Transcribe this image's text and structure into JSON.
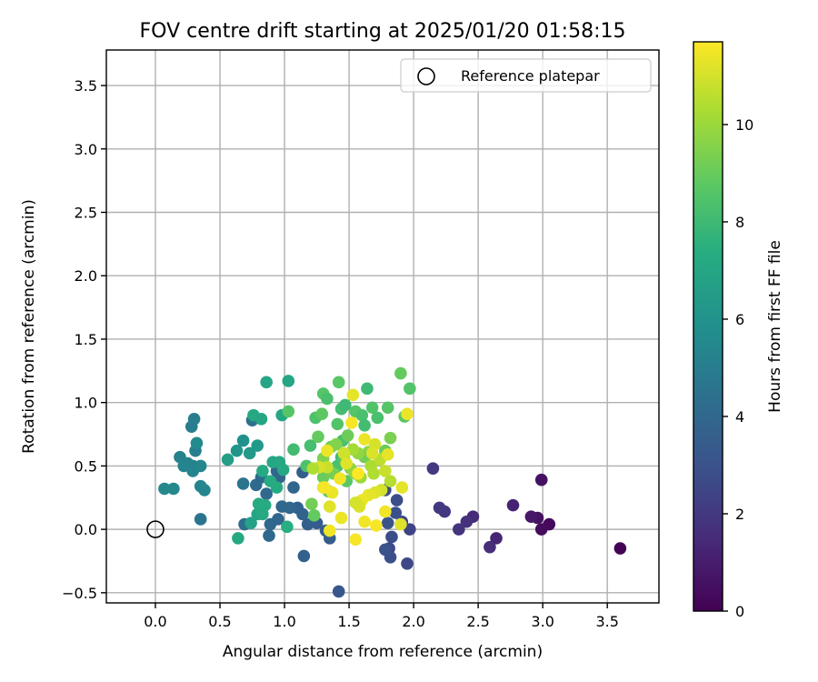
{
  "chart_data": {
    "type": "scatter",
    "title": "FOV centre drift starting at 2025/01/20 01:58:15",
    "xlabel": "Angular distance from reference (arcmin)",
    "ylabel": "Rotation from reference (arcmin)",
    "xlim": [
      -0.38,
      3.9
    ],
    "ylim": [
      -0.58,
      3.78
    ],
    "xticks": [
      0.0,
      0.5,
      1.0,
      1.5,
      2.0,
      2.5,
      3.0,
      3.5
    ],
    "xtick_labels": [
      "0.0",
      "0.5",
      "1.0",
      "1.5",
      "2.0",
      "2.5",
      "3.0",
      "3.5"
    ],
    "yticks": [
      -0.5,
      0.0,
      0.5,
      1.0,
      1.5,
      2.0,
      2.5,
      3.0,
      3.5
    ],
    "ytick_labels": [
      "−0.5",
      "0.0",
      "0.5",
      "1.0",
      "1.5",
      "2.0",
      "2.5",
      "3.0",
      "3.5"
    ],
    "grid": true,
    "legend": {
      "placement": "top-right",
      "entries": [
        {
          "label": "Reference platepar",
          "marker": "open-circle"
        }
      ]
    },
    "reference_point": {
      "x": 0.0,
      "y": 0.0
    },
    "colorbar": {
      "label": "Hours from first FF file",
      "colormap": "viridis",
      "range": [
        0,
        11.7
      ],
      "ticks": [
        0,
        2,
        4,
        6,
        8,
        10
      ],
      "tick_labels": [
        "0",
        "2",
        "4",
        "6",
        "8",
        "10"
      ]
    },
    "points": [
      {
        "x": 3.6,
        "y": -0.15,
        "c": 0.1
      },
      {
        "x": 3.05,
        "y": 0.04,
        "c": 0.3
      },
      {
        "x": 2.99,
        "y": 0.0,
        "c": 0.4
      },
      {
        "x": 2.99,
        "y": 0.39,
        "c": 0.6
      },
      {
        "x": 2.96,
        "y": 0.09,
        "c": 0.6
      },
      {
        "x": 2.91,
        "y": 0.1,
        "c": 0.8
      },
      {
        "x": 2.77,
        "y": 0.19,
        "c": 1.2
      },
      {
        "x": 2.64,
        "y": -0.07,
        "c": 1.3
      },
      {
        "x": 2.59,
        "y": -0.14,
        "c": 1.6
      },
      {
        "x": 2.46,
        "y": 0.1,
        "c": 1.5
      },
      {
        "x": 2.41,
        "y": 0.06,
        "c": 1.7
      },
      {
        "x": 2.35,
        "y": 0.0,
        "c": 1.8
      },
      {
        "x": 2.24,
        "y": 0.14,
        "c": 1.9
      },
      {
        "x": 2.2,
        "y": 0.17,
        "c": 2.0
      },
      {
        "x": 2.15,
        "y": 0.48,
        "c": 2.0
      },
      {
        "x": 1.97,
        "y": 0.0,
        "c": 2.4
      },
      {
        "x": 1.95,
        "y": -0.27,
        "c": 2.6
      },
      {
        "x": 1.91,
        "y": 0.06,
        "c": 2.6
      },
      {
        "x": 1.87,
        "y": 0.23,
        "c": 2.8
      },
      {
        "x": 1.81,
        "y": -0.15,
        "c": 2.6
      },
      {
        "x": 1.83,
        "y": -0.06,
        "c": 2.8
      },
      {
        "x": 1.82,
        "y": -0.22,
        "c": 2.9
      },
      {
        "x": 1.78,
        "y": -0.16,
        "c": 3.0
      },
      {
        "x": 1.8,
        "y": 0.05,
        "c": 3.0
      },
      {
        "x": 1.86,
        "y": 0.13,
        "c": 2.9
      },
      {
        "x": 1.78,
        "y": 0.31,
        "c": 2.7
      },
      {
        "x": 1.42,
        "y": -0.49,
        "c": 3.2
      },
      {
        "x": 1.35,
        "y": -0.07,
        "c": 3.5
      },
      {
        "x": 1.32,
        "y": -0.01,
        "c": 3.6
      },
      {
        "x": 1.25,
        "y": 0.05,
        "c": 3.4
      },
      {
        "x": 1.15,
        "y": -0.21,
        "c": 3.7
      },
      {
        "x": 1.18,
        "y": 0.04,
        "c": 3.6
      },
      {
        "x": 1.14,
        "y": 0.12,
        "c": 3.8
      },
      {
        "x": 1.1,
        "y": 0.17,
        "c": 3.7
      },
      {
        "x": 1.04,
        "y": 0.17,
        "c": 3.9
      },
      {
        "x": 1.07,
        "y": 0.33,
        "c": 3.9
      },
      {
        "x": 1.14,
        "y": 0.45,
        "c": 3.6
      },
      {
        "x": 0.98,
        "y": 0.18,
        "c": 4.0
      },
      {
        "x": 0.95,
        "y": 0.08,
        "c": 3.9
      },
      {
        "x": 0.89,
        "y": 0.04,
        "c": 4.0
      },
      {
        "x": 0.88,
        "y": -0.05,
        "c": 4.0
      },
      {
        "x": 0.96,
        "y": 0.41,
        "c": 3.9
      },
      {
        "x": 0.94,
        "y": 0.46,
        "c": 3.9
      },
      {
        "x": 0.92,
        "y": 0.38,
        "c": 4.0
      },
      {
        "x": 0.86,
        "y": 0.28,
        "c": 4.1
      },
      {
        "x": 0.82,
        "y": 0.41,
        "c": 4.2
      },
      {
        "x": 0.78,
        "y": 0.35,
        "c": 4.1
      },
      {
        "x": 0.75,
        "y": 0.86,
        "c": 4.5
      },
      {
        "x": 0.68,
        "y": 0.36,
        "c": 4.6
      },
      {
        "x": 0.69,
        "y": 0.04,
        "c": 4.3
      },
      {
        "x": 0.35,
        "y": 0.08,
        "c": 4.6
      },
      {
        "x": 0.28,
        "y": 0.81,
        "c": 5.0
      },
      {
        "x": 0.3,
        "y": 0.87,
        "c": 5.0
      },
      {
        "x": 0.31,
        "y": 0.62,
        "c": 5.1
      },
      {
        "x": 0.29,
        "y": 0.5,
        "c": 5.1
      },
      {
        "x": 0.25,
        "y": 0.52,
        "c": 5.2
      },
      {
        "x": 0.19,
        "y": 0.57,
        "c": 5.2
      },
      {
        "x": 0.22,
        "y": 0.5,
        "c": 5.3
      },
      {
        "x": 0.29,
        "y": 0.46,
        "c": 5.3
      },
      {
        "x": 0.35,
        "y": 0.5,
        "c": 5.4
      },
      {
        "x": 0.35,
        "y": 0.34,
        "c": 5.3
      },
      {
        "x": 0.38,
        "y": 0.31,
        "c": 5.4
      },
      {
        "x": 0.14,
        "y": 0.32,
        "c": 5.5
      },
      {
        "x": 0.07,
        "y": 0.32,
        "c": 5.5
      },
      {
        "x": 0.32,
        "y": 0.68,
        "c": 5.6
      },
      {
        "x": 0.68,
        "y": 0.7,
        "c": 5.9
      },
      {
        "x": 0.63,
        "y": 0.62,
        "c": 6.1
      },
      {
        "x": 0.73,
        "y": 0.6,
        "c": 6.3
      },
      {
        "x": 0.79,
        "y": 0.66,
        "c": 6.4
      },
      {
        "x": 0.56,
        "y": 0.55,
        "c": 6.6
      },
      {
        "x": 0.64,
        "y": -0.07,
        "c": 7.1
      },
      {
        "x": 0.74,
        "y": 0.05,
        "c": 6.8
      },
      {
        "x": 0.79,
        "y": 0.12,
        "c": 6.9
      },
      {
        "x": 0.8,
        "y": 0.2,
        "c": 7.2
      },
      {
        "x": 0.83,
        "y": 0.12,
        "c": 7.1
      },
      {
        "x": 0.85,
        "y": 0.19,
        "c": 7.2
      },
      {
        "x": 0.76,
        "y": 0.9,
        "c": 7.1
      },
      {
        "x": 0.82,
        "y": 0.87,
        "c": 7.0
      },
      {
        "x": 0.86,
        "y": 1.16,
        "c": 7.0
      },
      {
        "x": 1.03,
        "y": 1.17,
        "c": 7.0
      },
      {
        "x": 0.98,
        "y": 0.9,
        "c": 7.0
      },
      {
        "x": 0.91,
        "y": 0.53,
        "c": 7.0
      },
      {
        "x": 0.96,
        "y": 0.53,
        "c": 7.1
      },
      {
        "x": 0.99,
        "y": 0.47,
        "c": 7.1
      },
      {
        "x": 0.94,
        "y": 0.33,
        "c": 7.2
      },
      {
        "x": 0.89,
        "y": 0.38,
        "c": 7.3
      },
      {
        "x": 0.83,
        "y": 0.46,
        "c": 7.2
      },
      {
        "x": 1.02,
        "y": 0.02,
        "c": 7.4
      },
      {
        "x": 1.07,
        "y": 0.63,
        "c": 8.1
      },
      {
        "x": 1.03,
        "y": 0.93,
        "c": 8.6
      },
      {
        "x": 1.17,
        "y": 0.5,
        "c": 8.4
      },
      {
        "x": 1.2,
        "y": 0.66,
        "c": 8.2
      },
      {
        "x": 1.24,
        "y": 0.88,
        "c": 8.4
      },
      {
        "x": 1.26,
        "y": 0.73,
        "c": 8.9
      },
      {
        "x": 1.29,
        "y": 0.91,
        "c": 8.8
      },
      {
        "x": 1.3,
        "y": 1.07,
        "c": 8.6
      },
      {
        "x": 1.33,
        "y": 1.03,
        "c": 8.3
      },
      {
        "x": 1.42,
        "y": 1.16,
        "c": 8.7
      },
      {
        "x": 1.41,
        "y": 0.83,
        "c": 8.5
      },
      {
        "x": 1.44,
        "y": 0.95,
        "c": 8.2
      },
      {
        "x": 1.47,
        "y": 0.98,
        "c": 8.0
      },
      {
        "x": 1.45,
        "y": 0.7,
        "c": 8.3
      },
      {
        "x": 1.44,
        "y": 0.57,
        "c": 8.0
      },
      {
        "x": 1.41,
        "y": 0.5,
        "c": 8.3
      },
      {
        "x": 1.46,
        "y": 0.55,
        "c": 8.6
      },
      {
        "x": 1.48,
        "y": 0.38,
        "c": 8.7
      },
      {
        "x": 1.34,
        "y": 0.3,
        "c": 8.8
      },
      {
        "x": 1.3,
        "y": 0.41,
        "c": 9.0
      },
      {
        "x": 1.38,
        "y": 0.44,
        "c": 9.3
      },
      {
        "x": 1.21,
        "y": 0.2,
        "c": 9.2
      },
      {
        "x": 1.23,
        "y": 0.11,
        "c": 8.9
      },
      {
        "x": 1.3,
        "y": 0.56,
        "c": 9.5
      },
      {
        "x": 1.36,
        "y": 0.65,
        "c": 9.3
      },
      {
        "x": 1.4,
        "y": 0.67,
        "c": 9.5
      },
      {
        "x": 1.49,
        "y": 0.74,
        "c": 9.1
      },
      {
        "x": 1.55,
        "y": 0.93,
        "c": 8.6
      },
      {
        "x": 1.6,
        "y": 0.9,
        "c": 8.3
      },
      {
        "x": 1.62,
        "y": 0.82,
        "c": 8.1
      },
      {
        "x": 1.64,
        "y": 1.11,
        "c": 8.0
      },
      {
        "x": 1.68,
        "y": 0.96,
        "c": 8.5
      },
      {
        "x": 1.72,
        "y": 0.88,
        "c": 8.3
      },
      {
        "x": 1.8,
        "y": 0.96,
        "c": 8.6
      },
      {
        "x": 1.9,
        "y": 1.23,
        "c": 8.9
      },
      {
        "x": 1.97,
        "y": 1.11,
        "c": 8.5
      },
      {
        "x": 1.93,
        "y": 0.89,
        "c": 8.7
      },
      {
        "x": 1.82,
        "y": 0.72,
        "c": 9.4
      },
      {
        "x": 1.78,
        "y": 0.62,
        "c": 9.1
      },
      {
        "x": 1.65,
        "y": 0.61,
        "c": 9.7
      },
      {
        "x": 1.62,
        "y": 0.57,
        "c": 9.2
      },
      {
        "x": 1.57,
        "y": 0.6,
        "c": 9.8
      },
      {
        "x": 1.53,
        "y": 0.63,
        "c": 10.2
      },
      {
        "x": 1.51,
        "y": 0.48,
        "c": 9.7
      },
      {
        "x": 1.55,
        "y": 0.44,
        "c": 9.9
      },
      {
        "x": 1.59,
        "y": 0.41,
        "c": 10.1
      },
      {
        "x": 1.67,
        "y": 0.5,
        "c": 10.3
      },
      {
        "x": 1.69,
        "y": 0.44,
        "c": 10.4
      },
      {
        "x": 1.74,
        "y": 0.55,
        "c": 10.6
      },
      {
        "x": 1.78,
        "y": 0.46,
        "c": 10.8
      },
      {
        "x": 1.82,
        "y": 0.38,
        "c": 10.5
      },
      {
        "x": 1.75,
        "y": 0.31,
        "c": 11.0
      },
      {
        "x": 1.7,
        "y": 0.29,
        "c": 11.2
      },
      {
        "x": 1.65,
        "y": 0.27,
        "c": 11.3
      },
      {
        "x": 1.6,
        "y": 0.23,
        "c": 11.4
      },
      {
        "x": 1.58,
        "y": 0.18,
        "c": 11.1
      },
      {
        "x": 1.55,
        "y": 0.21,
        "c": 11.0
      },
      {
        "x": 1.62,
        "y": 0.06,
        "c": 11.5
      },
      {
        "x": 1.71,
        "y": 0.03,
        "c": 11.6
      },
      {
        "x": 1.78,
        "y": 0.14,
        "c": 11.5
      },
      {
        "x": 1.9,
        "y": 0.04,
        "c": 11.2
      },
      {
        "x": 1.91,
        "y": 0.33,
        "c": 11.3
      },
      {
        "x": 1.95,
        "y": 0.91,
        "c": 11.4
      },
      {
        "x": 1.8,
        "y": 0.59,
        "c": 11.3
      },
      {
        "x": 1.7,
        "y": 0.67,
        "c": 11.0
      },
      {
        "x": 1.68,
        "y": 0.6,
        "c": 11.1
      },
      {
        "x": 1.62,
        "y": 0.71,
        "c": 11.4
      },
      {
        "x": 1.52,
        "y": 0.84,
        "c": 11.6
      },
      {
        "x": 1.53,
        "y": 1.06,
        "c": 11.3
      },
      {
        "x": 1.46,
        "y": 0.6,
        "c": 10.9
      },
      {
        "x": 1.33,
        "y": 0.49,
        "c": 10.8
      },
      {
        "x": 1.3,
        "y": 0.33,
        "c": 11.2
      },
      {
        "x": 1.27,
        "y": 0.49,
        "c": 11.0
      },
      {
        "x": 1.22,
        "y": 0.48,
        "c": 10.4
      },
      {
        "x": 1.37,
        "y": 0.29,
        "c": 11.4
      },
      {
        "x": 1.35,
        "y": 0.18,
        "c": 11.2
      },
      {
        "x": 1.43,
        "y": 0.4,
        "c": 11.5
      },
      {
        "x": 1.33,
        "y": 0.62,
        "c": 11.4
      },
      {
        "x": 1.31,
        "y": 0.33,
        "c": 11.6
      },
      {
        "x": 1.48,
        "y": 0.52,
        "c": 11.2
      },
      {
        "x": 1.57,
        "y": 0.44,
        "c": 11.7
      },
      {
        "x": 1.35,
        "y": -0.01,
        "c": 11.5
      },
      {
        "x": 1.55,
        "y": -0.08,
        "c": 11.6
      },
      {
        "x": 1.44,
        "y": 0.09,
        "c": 11.4
      }
    ]
  }
}
